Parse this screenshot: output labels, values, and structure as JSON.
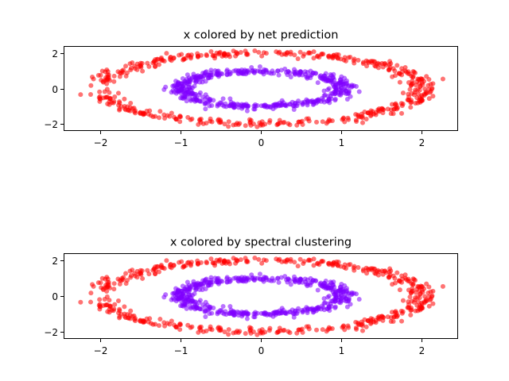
{
  "figure": {
    "background": "#ffffff"
  },
  "colors": {
    "outer_ring": "#ff0000",
    "inner_ring": "#8000ff",
    "point_alpha": 0.55
  },
  "chart_data": [
    {
      "type": "scatter",
      "title": "x colored by net prediction",
      "xlabel": "",
      "ylabel": "",
      "xlim": [
        -2.45,
        2.45
      ],
      "ylim": [
        -2.4,
        2.4
      ],
      "xticks": [
        -2,
        -1,
        0,
        1,
        2
      ],
      "xtick_labels": [
        "−2",
        "−1",
        "0",
        "1",
        "2"
      ],
      "yticks": [
        -2,
        0,
        2
      ],
      "ytick_labels": [
        "−2",
        "0",
        "2"
      ],
      "grid": false,
      "legend": "none",
      "series": [
        {
          "color": "#ff0000",
          "shape": "ellipse",
          "x_radius": 2.0,
          "y_radius": 2.0,
          "noise": 0.1,
          "n_points": 500
        },
        {
          "color": "#8000ff",
          "shape": "ellipse",
          "x_radius": 1.0,
          "y_radius": 1.0,
          "noise": 0.1,
          "n_points": 500
        }
      ]
    },
    {
      "type": "scatter",
      "title": "x colored by spectral clustering",
      "xlabel": "",
      "ylabel": "",
      "xlim": [
        -2.45,
        2.45
      ],
      "ylim": [
        -2.4,
        2.4
      ],
      "xticks": [
        -2,
        -1,
        0,
        1,
        2
      ],
      "xtick_labels": [
        "−2",
        "−1",
        "0",
        "1",
        "2"
      ],
      "yticks": [
        -2,
        0,
        2
      ],
      "ytick_labels": [
        "−2",
        "0",
        "2"
      ],
      "grid": false,
      "legend": "none",
      "series": [
        {
          "color": "#ff0000",
          "shape": "ellipse",
          "x_radius": 2.0,
          "y_radius": 2.0,
          "noise": 0.1,
          "n_points": 500
        },
        {
          "color": "#8000ff",
          "shape": "ellipse",
          "x_radius": 1.0,
          "y_radius": 1.0,
          "noise": 0.1,
          "n_points": 500
        }
      ]
    }
  ]
}
